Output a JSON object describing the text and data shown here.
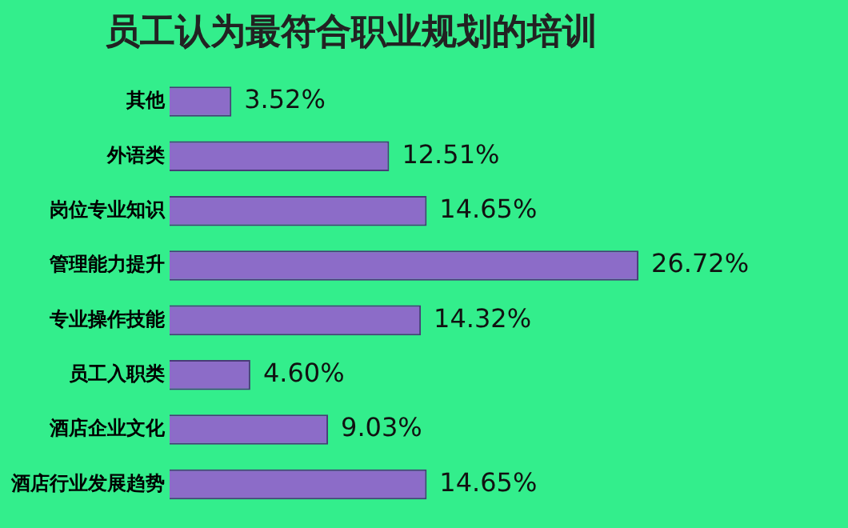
{
  "chart_data": {
    "type": "bar",
    "orientation": "horizontal",
    "title": "员工认为最符合职业规划的培训",
    "categories": [
      "其他",
      "外语类",
      "岗位专业知识",
      "管理能力提升",
      "专业操作技能",
      "员工入职类",
      "酒店企业文化",
      "酒店行业发展趋势"
    ],
    "values": [
      3.52,
      12.51,
      14.65,
      26.72,
      14.32,
      4.6,
      9.03,
      14.65
    ],
    "value_labels": [
      "3.52%",
      "12.51%",
      "14.65%",
      "26.72%",
      "14.32%",
      "4.60%",
      "9.03%",
      "14.65%"
    ],
    "color": "#8c6cc8",
    "grid": false,
    "legend": false,
    "tick_labels": "y"
  }
}
